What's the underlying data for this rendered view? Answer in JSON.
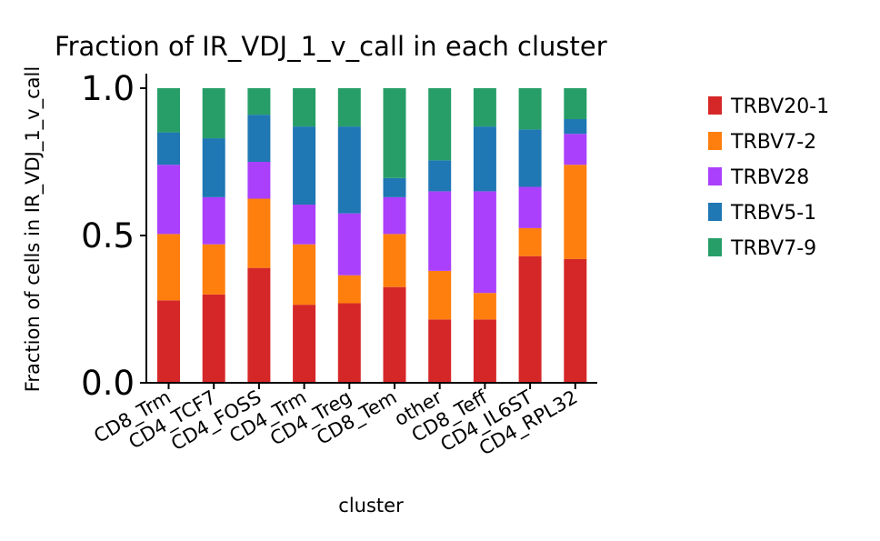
{
  "chart_data": {
    "type": "bar",
    "stacked": true,
    "title": "Fraction of IR_VDJ_1_v_call in each cluster",
    "xlabel": "cluster",
    "ylabel": "Fraction of cells in IR_VDJ_1_v_call",
    "ylim": [
      0,
      1.05
    ],
    "yticks": [
      {
        "value": 0.0,
        "label": "0.0"
      },
      {
        "value": 0.5,
        "label": "0.5"
      },
      {
        "value": 1.0,
        "label": "1.0"
      }
    ],
    "categories": [
      "CD8_Trm",
      "CD4_TCF7",
      "CD4_FOSS",
      "CD4_Trm",
      "CD4_Treg",
      "CD8_Tem",
      "other",
      "CD8_Teff",
      "CD4_IL6ST",
      "CD4_RPL32"
    ],
    "series": [
      {
        "name": "TRBV20-1",
        "color": "#d62728",
        "values": [
          0.28,
          0.3,
          0.39,
          0.265,
          0.27,
          0.325,
          0.215,
          0.215,
          0.43,
          0.42
        ]
      },
      {
        "name": "TRBV7-2",
        "color": "#ff7f0e",
        "values": [
          0.225,
          0.17,
          0.235,
          0.205,
          0.095,
          0.18,
          0.165,
          0.09,
          0.095,
          0.32
        ]
      },
      {
        "name": "TRBV28",
        "color": "#aa40fc",
        "values": [
          0.235,
          0.16,
          0.125,
          0.135,
          0.21,
          0.125,
          0.27,
          0.345,
          0.14,
          0.105
        ]
      },
      {
        "name": "TRBV5-1",
        "color": "#1f77b4",
        "values": [
          0.11,
          0.2,
          0.16,
          0.265,
          0.295,
          0.065,
          0.105,
          0.22,
          0.195,
          0.05
        ]
      },
      {
        "name": "TRBV7-9",
        "color": "#279e68",
        "values": [
          0.15,
          0.17,
          0.09,
          0.13,
          0.13,
          0.305,
          0.245,
          0.13,
          0.14,
          0.105
        ]
      }
    ],
    "legend_position": "right"
  }
}
